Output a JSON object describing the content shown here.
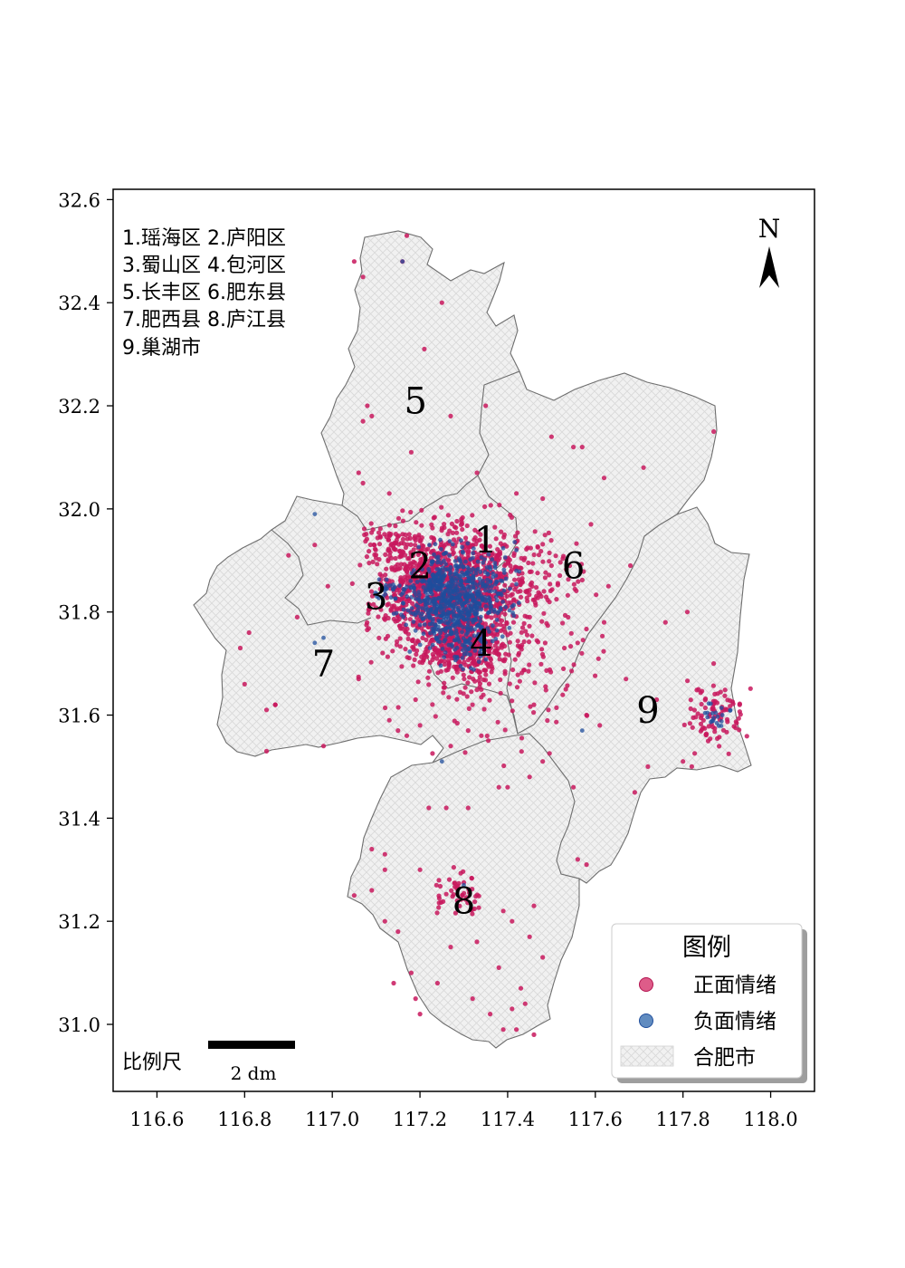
{
  "map": {
    "district_key": [
      "1.瑶海区 2.庐阳区",
      "3.蜀山区 4.包河区",
      "5.长丰区 6.肥东县",
      "7.肥西县 8.庐江县",
      "9.巢湖市"
    ],
    "district_labels": [
      {
        "id": "1",
        "lon": 117.35,
        "lat": 31.94
      },
      {
        "id": "2",
        "lon": 117.2,
        "lat": 31.89
      },
      {
        "id": "3",
        "lon": 117.1,
        "lat": 31.83
      },
      {
        "id": "4",
        "lon": 117.34,
        "lat": 31.74
      },
      {
        "id": "5",
        "lon": 117.19,
        "lat": 32.21
      },
      {
        "id": "6",
        "lon": 117.55,
        "lat": 31.89
      },
      {
        "id": "7",
        "lon": 116.98,
        "lat": 31.7
      },
      {
        "id": "8",
        "lon": 117.3,
        "lat": 31.24
      },
      {
        "id": "9",
        "lon": 117.72,
        "lat": 31.61
      }
    ],
    "north_arrow_label": "N",
    "scale_bar": {
      "title": "比例尺",
      "label": "2 dm"
    },
    "legend": {
      "title": "图例",
      "items": [
        {
          "label": "正面情绪",
          "color": "#d6336c"
        },
        {
          "label": "负面情绪",
          "color": "#3a6fb0"
        },
        {
          "label": "合肥市",
          "pattern": "crosshatch"
        }
      ]
    },
    "axes": {
      "x_range": [
        116.5,
        118.1
      ],
      "y_range": [
        30.87,
        32.62
      ],
      "x_ticks": [
        "116.6",
        "116.8",
        "117.0",
        "117.2",
        "117.4",
        "117.6",
        "117.8",
        "118.0"
      ],
      "y_ticks": [
        "31.0",
        "31.2",
        "31.4",
        "31.6",
        "31.8",
        "32.0",
        "32.2",
        "32.4",
        "32.6"
      ]
    },
    "colors": {
      "positive": "#c8175d",
      "negative": "#1f4e9c",
      "region_fill": "#f1f1f1",
      "hatch": "#d9d9d9",
      "boundary": "#6e6e6e"
    }
  },
  "chart_data": {
    "type": "scatter",
    "title": "",
    "xlabel": "",
    "ylabel": "",
    "xlim": [
      116.5,
      118.1
    ],
    "ylim": [
      30.87,
      32.62
    ],
    "series": [
      {
        "name": "正面情绪",
        "color": "#c8175d",
        "clusters": [
          {
            "lon": 117.27,
            "lat": 31.84,
            "spread": 0.09,
            "count": 1300
          },
          {
            "lon": 117.3,
            "lat": 31.73,
            "spread": 0.05,
            "count": 250
          },
          {
            "lon": 117.87,
            "lat": 31.6,
            "spread": 0.04,
            "count": 90
          },
          {
            "lon": 117.29,
            "lat": 31.25,
            "spread": 0.03,
            "count": 50
          },
          {
            "lon": 117.13,
            "lat": 31.93,
            "spread": 0.03,
            "count": 60
          },
          {
            "lon": 117.47,
            "lat": 31.87,
            "spread": 0.06,
            "count": 90
          },
          {
            "lon": 117.4,
            "lat": 31.7,
            "spread": 0.12,
            "count": 140
          }
        ],
        "scattered": [
          {
            "lon": 117.17,
            "lat": 32.53
          },
          {
            "lon": 117.16,
            "lat": 32.48
          },
          {
            "lon": 117.07,
            "lat": 32.45
          },
          {
            "lon": 117.05,
            "lat": 32.48
          },
          {
            "lon": 117.25,
            "lat": 32.4
          },
          {
            "lon": 117.21,
            "lat": 32.31
          },
          {
            "lon": 117.35,
            "lat": 32.2
          },
          {
            "lon": 117.08,
            "lat": 32.2
          },
          {
            "lon": 117.09,
            "lat": 32.18
          },
          {
            "lon": 117.27,
            "lat": 32.18
          },
          {
            "lon": 117.07,
            "lat": 32.17
          },
          {
            "lon": 117.18,
            "lat": 32.11
          },
          {
            "lon": 117.06,
            "lat": 32.07
          },
          {
            "lon": 117.07,
            "lat": 32.05
          },
          {
            "lon": 117.13,
            "lat": 32.03
          },
          {
            "lon": 117.42,
            "lat": 32.03
          },
          {
            "lon": 117.33,
            "lat": 32.07
          },
          {
            "lon": 117.5,
            "lat": 32.14
          },
          {
            "lon": 117.55,
            "lat": 32.12
          },
          {
            "lon": 117.57,
            "lat": 32.12
          },
          {
            "lon": 117.62,
            "lat": 32.06
          },
          {
            "lon": 117.71,
            "lat": 32.08
          },
          {
            "lon": 117.87,
            "lat": 32.15
          },
          {
            "lon": 117.48,
            "lat": 32.02
          },
          {
            "lon": 117.59,
            "lat": 31.97
          },
          {
            "lon": 117.5,
            "lat": 31.89
          },
          {
            "lon": 117.63,
            "lat": 31.85
          },
          {
            "lon": 117.68,
            "lat": 31.89
          },
          {
            "lon": 117.62,
            "lat": 31.78
          },
          {
            "lon": 117.76,
            "lat": 31.78
          },
          {
            "lon": 117.81,
            "lat": 31.8
          },
          {
            "lon": 117.67,
            "lat": 31.67
          },
          {
            "lon": 117.74,
            "lat": 31.63
          },
          {
            "lon": 117.8,
            "lat": 31.51
          },
          {
            "lon": 117.72,
            "lat": 31.5
          },
          {
            "lon": 117.82,
            "lat": 31.5
          },
          {
            "lon": 117.69,
            "lat": 31.45
          },
          {
            "lon": 117.87,
            "lat": 31.7
          },
          {
            "lon": 117.58,
            "lat": 31.6
          },
          {
            "lon": 117.61,
            "lat": 31.58
          },
          {
            "lon": 117.46,
            "lat": 31.62
          },
          {
            "lon": 117.58,
            "lat": 31.31
          },
          {
            "lon": 117.56,
            "lat": 31.32
          },
          {
            "lon": 117.48,
            "lat": 31.51
          },
          {
            "lon": 117.45,
            "lat": 31.48
          },
          {
            "lon": 117.55,
            "lat": 31.46
          },
          {
            "lon": 117.38,
            "lat": 31.46
          },
          {
            "lon": 117.4,
            "lat": 31.46
          },
          {
            "lon": 117.26,
            "lat": 31.42
          },
          {
            "lon": 117.31,
            "lat": 31.42
          },
          {
            "lon": 117.22,
            "lat": 31.42
          },
          {
            "lon": 117.09,
            "lat": 31.34
          },
          {
            "lon": 117.12,
            "lat": 31.33
          },
          {
            "lon": 117.12,
            "lat": 31.3
          },
          {
            "lon": 117.09,
            "lat": 31.26
          },
          {
            "lon": 117.05,
            "lat": 31.25
          },
          {
            "lon": 117.12,
            "lat": 31.2
          },
          {
            "lon": 117.15,
            "lat": 31.18
          },
          {
            "lon": 117.2,
            "lat": 31.3
          },
          {
            "lon": 117.39,
            "lat": 31.22
          },
          {
            "lon": 117.41,
            "lat": 31.2
          },
          {
            "lon": 117.46,
            "lat": 31.23
          },
          {
            "lon": 117.45,
            "lat": 31.17
          },
          {
            "lon": 117.33,
            "lat": 31.16
          },
          {
            "lon": 117.27,
            "lat": 31.15
          },
          {
            "lon": 117.24,
            "lat": 31.08
          },
          {
            "lon": 117.19,
            "lat": 31.05
          },
          {
            "lon": 117.2,
            "lat": 31.02
          },
          {
            "lon": 117.32,
            "lat": 31.05
          },
          {
            "lon": 117.36,
            "lat": 31.02
          },
          {
            "lon": 117.41,
            "lat": 31.03
          },
          {
            "lon": 117.43,
            "lat": 31.07
          },
          {
            "lon": 117.44,
            "lat": 31.04
          },
          {
            "lon": 117.39,
            "lat": 30.99
          },
          {
            "lon": 117.42,
            "lat": 30.99
          },
          {
            "lon": 117.46,
            "lat": 30.98
          },
          {
            "lon": 117.48,
            "lat": 31.13
          },
          {
            "lon": 117.38,
            "lat": 31.11
          },
          {
            "lon": 117.14,
            "lat": 31.08
          },
          {
            "lon": 117.18,
            "lat": 31.1
          },
          {
            "lon": 116.81,
            "lat": 31.76
          },
          {
            "lon": 116.79,
            "lat": 31.73
          },
          {
            "lon": 116.8,
            "lat": 31.66
          },
          {
            "lon": 116.87,
            "lat": 31.62
          },
          {
            "lon": 116.87,
            "lat": 31.62
          },
          {
            "lon": 116.85,
            "lat": 31.53
          },
          {
            "lon": 116.98,
            "lat": 31.54
          },
          {
            "lon": 117.06,
            "lat": 31.67
          },
          {
            "lon": 117.15,
            "lat": 31.57
          },
          {
            "lon": 117.13,
            "lat": 31.59
          },
          {
            "lon": 117.19,
            "lat": 31.63
          },
          {
            "lon": 117.2,
            "lat": 31.58
          },
          {
            "lon": 117.17,
            "lat": 31.56
          },
          {
            "lon": 117.31,
            "lat": 31.57
          },
          {
            "lon": 117.34,
            "lat": 31.56
          },
          {
            "lon": 117.27,
            "lat": 31.54
          },
          {
            "lon": 116.96,
            "lat": 31.93
          },
          {
            "lon": 116.9,
            "lat": 31.91
          },
          {
            "lon": 116.99,
            "lat": 31.85
          },
          {
            "lon": 116.92,
            "lat": 31.79
          },
          {
            "lon": 116.85,
            "lat": 31.61
          }
        ]
      },
      {
        "name": "负面情绪",
        "color": "#1f4e9c",
        "clusters": [
          {
            "lon": 117.28,
            "lat": 31.83,
            "spread": 0.06,
            "count": 700
          },
          {
            "lon": 117.3,
            "lat": 31.73,
            "spread": 0.03,
            "count": 60
          },
          {
            "lon": 117.87,
            "lat": 31.6,
            "spread": 0.02,
            "count": 20
          },
          {
            "lon": 117.13,
            "lat": 31.84,
            "spread": 0.02,
            "count": 25
          }
        ],
        "scattered": [
          {
            "lon": 116.96,
            "lat": 31.99
          },
          {
            "lon": 117.16,
            "lat": 32.48
          },
          {
            "lon": 117.57,
            "lat": 31.57
          },
          {
            "lon": 117.25,
            "lat": 31.51
          },
          {
            "lon": 116.96,
            "lat": 31.74
          },
          {
            "lon": 116.98,
            "lat": 31.75
          },
          {
            "lon": 117.3,
            "lat": 31.27
          },
          {
            "lon": 117.42,
            "lat": 31.88
          },
          {
            "lon": 117.42,
            "lat": 31.92
          }
        ]
      }
    ]
  }
}
